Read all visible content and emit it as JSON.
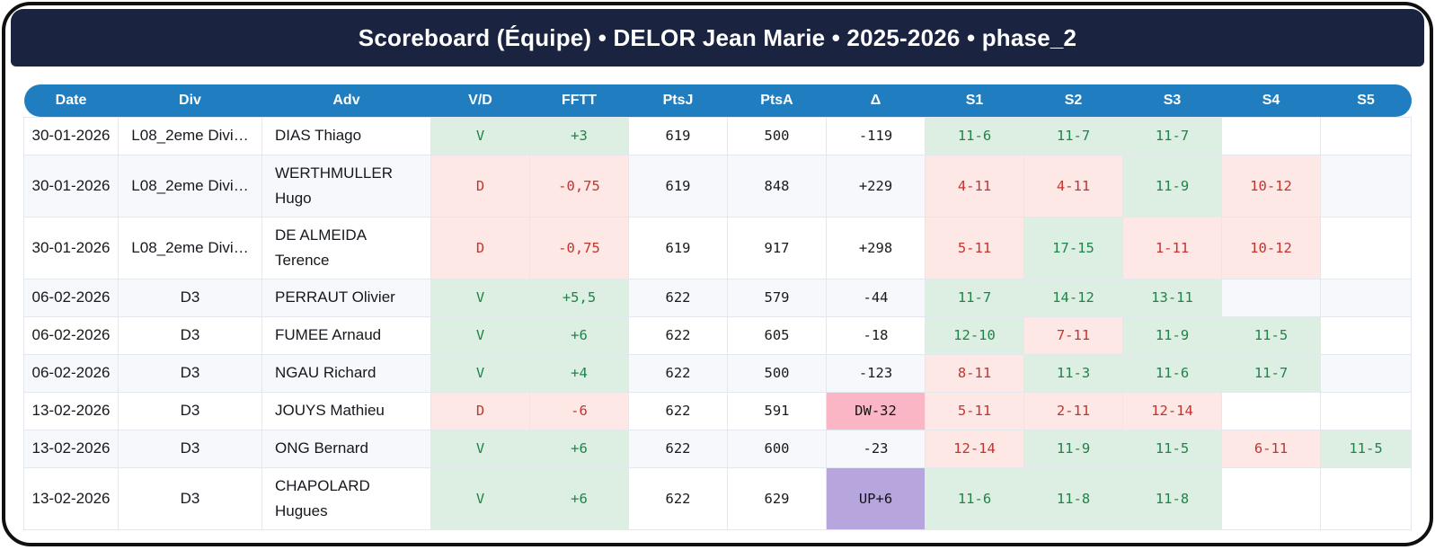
{
  "header": {
    "title": "Scoreboard (Équipe) • DELOR Jean Marie • 2025-2026 • phase_2"
  },
  "table": {
    "columns": [
      {
        "key": "date",
        "label": "Date"
      },
      {
        "key": "div",
        "label": "Div"
      },
      {
        "key": "adv",
        "label": "Adv"
      },
      {
        "key": "vd",
        "label": "V/D"
      },
      {
        "key": "fftt",
        "label": "FFTT"
      },
      {
        "key": "ptsj",
        "label": "PtsJ"
      },
      {
        "key": "ptsa",
        "label": "PtsA"
      },
      {
        "key": "delta",
        "label": "Δ"
      },
      {
        "key": "s1",
        "label": "S1"
      },
      {
        "key": "s2",
        "label": "S2"
      },
      {
        "key": "s3",
        "label": "S3"
      },
      {
        "key": "s4",
        "label": "S4"
      },
      {
        "key": "s5",
        "label": "S5"
      }
    ],
    "rows": [
      {
        "date": "30-01-2026",
        "div": "L08_2eme Divi…",
        "adv": "DIAS Thiago",
        "vd": {
          "text": "V",
          "result": "win"
        },
        "fftt": {
          "text": "+3",
          "result": "win"
        },
        "ptsj": "619",
        "ptsa": "500",
        "delta": {
          "text": "-119",
          "type": "normal"
        },
        "sets": [
          {
            "text": "11-6",
            "result": "win"
          },
          {
            "text": "11-7",
            "result": "win"
          },
          {
            "text": "11-7",
            "result": "win"
          },
          null,
          null
        ]
      },
      {
        "date": "30-01-2026",
        "div": "L08_2eme Divi…",
        "adv": "WERTHMULLER Hugo",
        "vd": {
          "text": "D",
          "result": "loss"
        },
        "fftt": {
          "text": "-0,75",
          "result": "loss"
        },
        "ptsj": "619",
        "ptsa": "848",
        "delta": {
          "text": "+229",
          "type": "normal"
        },
        "sets": [
          {
            "text": "4-11",
            "result": "loss"
          },
          {
            "text": "4-11",
            "result": "loss"
          },
          {
            "text": "11-9",
            "result": "win"
          },
          {
            "text": "10-12",
            "result": "loss"
          },
          null
        ]
      },
      {
        "date": "30-01-2026",
        "div": "L08_2eme Divi…",
        "adv": "DE ALMEIDA Terence",
        "vd": {
          "text": "D",
          "result": "loss"
        },
        "fftt": {
          "text": "-0,75",
          "result": "loss"
        },
        "ptsj": "619",
        "ptsa": "917",
        "delta": {
          "text": "+298",
          "type": "normal"
        },
        "sets": [
          {
            "text": "5-11",
            "result": "loss"
          },
          {
            "text": "17-15",
            "result": "win"
          },
          {
            "text": "1-11",
            "result": "loss"
          },
          {
            "text": "10-12",
            "result": "loss"
          },
          null
        ]
      },
      {
        "date": "06-02-2026",
        "div": "D3",
        "adv": "PERRAUT Olivier",
        "vd": {
          "text": "V",
          "result": "win"
        },
        "fftt": {
          "text": "+5,5",
          "result": "win"
        },
        "ptsj": "622",
        "ptsa": "579",
        "delta": {
          "text": "-44",
          "type": "normal"
        },
        "sets": [
          {
            "text": "11-7",
            "result": "win"
          },
          {
            "text": "14-12",
            "result": "win"
          },
          {
            "text": "13-11",
            "result": "win"
          },
          null,
          null
        ]
      },
      {
        "date": "06-02-2026",
        "div": "D3",
        "adv": "FUMEE Arnaud",
        "vd": {
          "text": "V",
          "result": "win"
        },
        "fftt": {
          "text": "+6",
          "result": "win"
        },
        "ptsj": "622",
        "ptsa": "605",
        "delta": {
          "text": "-18",
          "type": "normal"
        },
        "sets": [
          {
            "text": "12-10",
            "result": "win"
          },
          {
            "text": "7-11",
            "result": "loss"
          },
          {
            "text": "11-9",
            "result": "win"
          },
          {
            "text": "11-5",
            "result": "win"
          },
          null
        ]
      },
      {
        "date": "06-02-2026",
        "div": "D3",
        "adv": "NGAU Richard",
        "vd": {
          "text": "V",
          "result": "win"
        },
        "fftt": {
          "text": "+4",
          "result": "win"
        },
        "ptsj": "622",
        "ptsa": "500",
        "delta": {
          "text": "-123",
          "type": "normal"
        },
        "sets": [
          {
            "text": "8-11",
            "result": "loss"
          },
          {
            "text": "11-3",
            "result": "win"
          },
          {
            "text": "11-6",
            "result": "win"
          },
          {
            "text": "11-7",
            "result": "win"
          },
          null
        ]
      },
      {
        "date": "13-02-2026",
        "div": "D3",
        "adv": "JOUYS Mathieu",
        "vd": {
          "text": "D",
          "result": "loss"
        },
        "fftt": {
          "text": "-6",
          "result": "loss"
        },
        "ptsj": "622",
        "ptsa": "591",
        "delta": {
          "text": "DW-32",
          "type": "down"
        },
        "sets": [
          {
            "text": "5-11",
            "result": "loss"
          },
          {
            "text": "2-11",
            "result": "loss"
          },
          {
            "text": "12-14",
            "result": "loss"
          },
          null,
          null
        ]
      },
      {
        "date": "13-02-2026",
        "div": "D3",
        "adv": "ONG Bernard",
        "vd": {
          "text": "V",
          "result": "win"
        },
        "fftt": {
          "text": "+6",
          "result": "win"
        },
        "ptsj": "622",
        "ptsa": "600",
        "delta": {
          "text": "-23",
          "type": "normal"
        },
        "sets": [
          {
            "text": "12-14",
            "result": "loss"
          },
          {
            "text": "11-9",
            "result": "win"
          },
          {
            "text": "11-5",
            "result": "win"
          },
          {
            "text": "6-11",
            "result": "loss"
          },
          {
            "text": "11-5",
            "result": "win"
          }
        ]
      },
      {
        "date": "13-02-2026",
        "div": "D3",
        "adv": "CHAPOLARD Hugues",
        "vd": {
          "text": "V",
          "result": "win"
        },
        "fftt": {
          "text": "+6",
          "result": "win"
        },
        "ptsj": "622",
        "ptsa": "629",
        "delta": {
          "text": "UP+6",
          "type": "up"
        },
        "sets": [
          {
            "text": "11-6",
            "result": "win"
          },
          {
            "text": "11-8",
            "result": "win"
          },
          {
            "text": "11-8",
            "result": "win"
          },
          null,
          null
        ]
      }
    ]
  },
  "colors": {
    "navy_header": "#1a2440",
    "table_header_blue": "#1f7dc0",
    "win_bg": "#ddefe2",
    "win_text": "#1e8449",
    "loss_bg": "#fde8e6",
    "loss_text": "#c4342f",
    "down_bg": "#fbb6c6",
    "up_bg": "#b7a5dd",
    "stripe_bg": "#f6f8fc",
    "frame_border": "#101010"
  }
}
